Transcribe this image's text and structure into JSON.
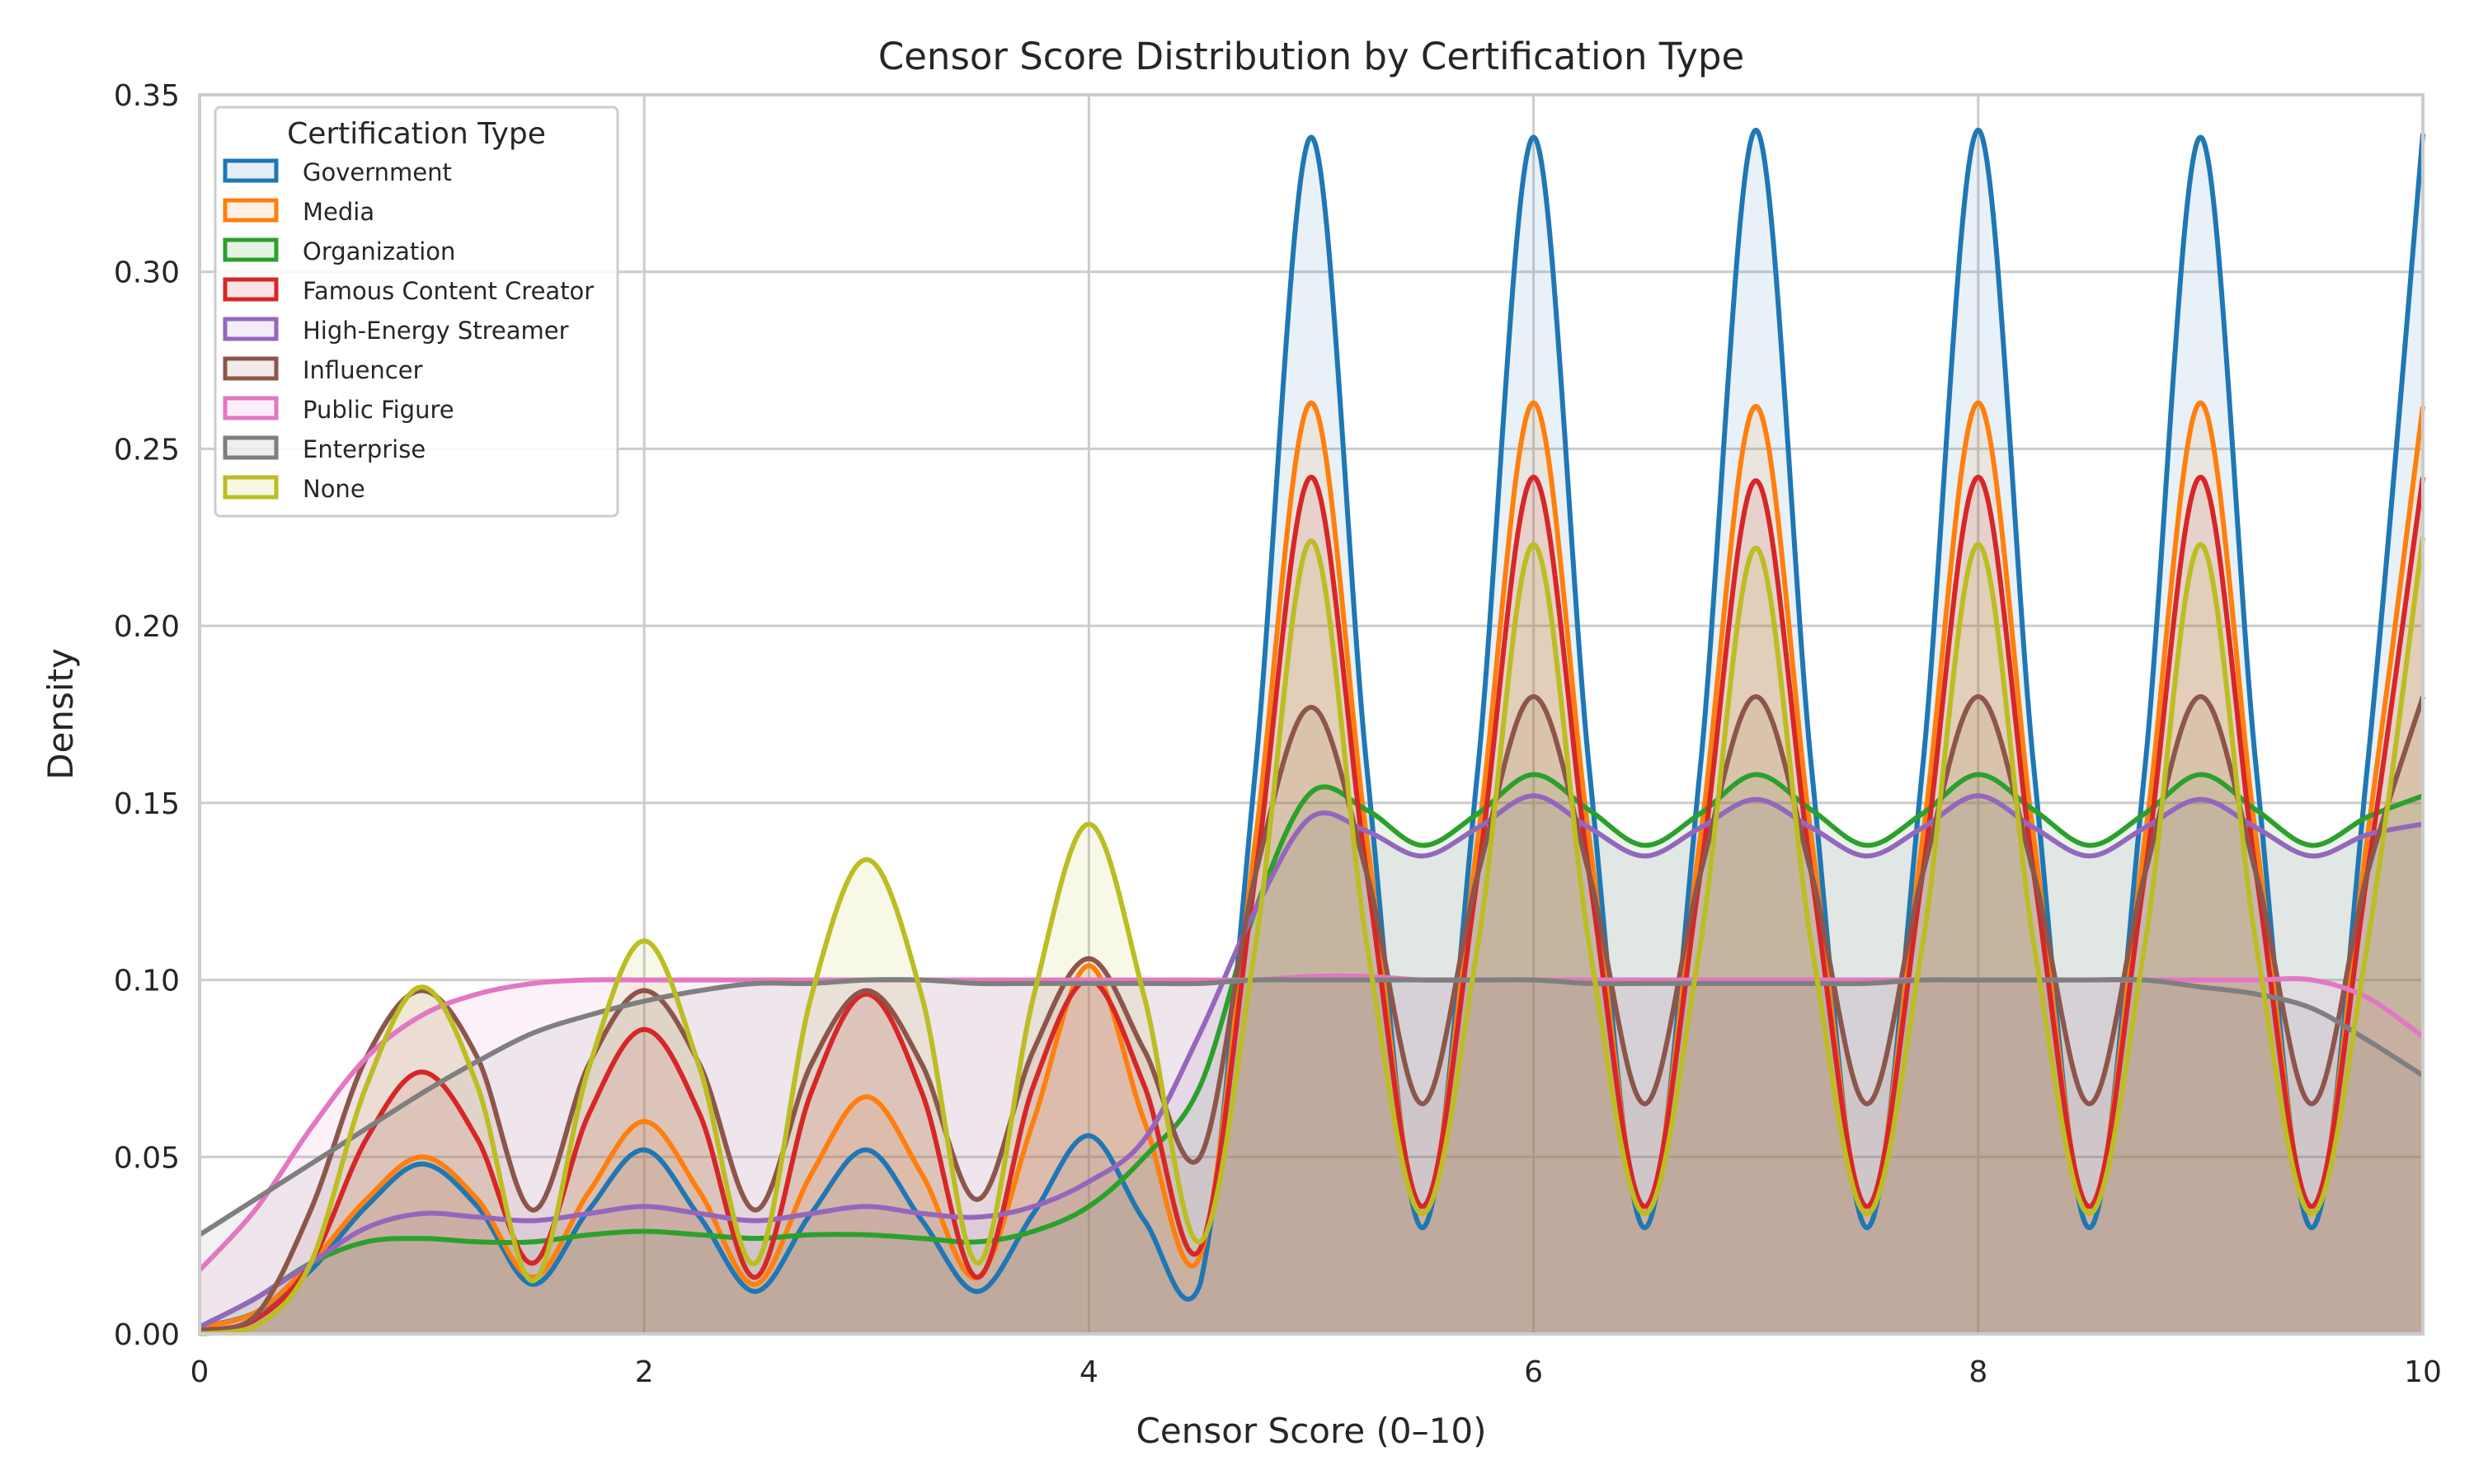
{
  "chart_data": {
    "type": "area",
    "title": "Censor Score Distribution by Certification Type",
    "xlabel": "Censor Score (0–10)",
    "ylabel": "Density",
    "xlim": [
      0,
      10
    ],
    "ylim": [
      0,
      0.35
    ],
    "xticks": [
      0,
      2,
      4,
      6,
      8,
      10
    ],
    "yticks": [
      0.0,
      0.05,
      0.1,
      0.15,
      0.2,
      0.25,
      0.3,
      0.35
    ],
    "grid": true,
    "legend": {
      "title": "Certification Type",
      "position": "top-left"
    },
    "x": [
      0,
      0.25,
      0.5,
      0.75,
      1,
      1.25,
      1.5,
      1.75,
      2,
      2.25,
      2.5,
      2.75,
      3,
      3.25,
      3.5,
      3.75,
      4,
      4.25,
      4.5,
      4.75,
      5,
      5.25,
      5.5,
      5.75,
      6,
      6.25,
      6.5,
      6.75,
      7,
      7.25,
      7.5,
      7.75,
      8,
      8.25,
      8.5,
      8.75,
      9,
      9.25,
      9.5,
      9.75,
      10
    ],
    "series": [
      {
        "name": "Government",
        "color": "#1f77b4",
        "values": [
          0.002,
          0.006,
          0.018,
          0.036,
          0.048,
          0.036,
          0.014,
          0.035,
          0.052,
          0.033,
          0.012,
          0.034,
          0.052,
          0.032,
          0.012,
          0.034,
          0.056,
          0.032,
          0.014,
          0.16,
          0.338,
          0.16,
          0.03,
          0.16,
          0.338,
          0.16,
          0.03,
          0.16,
          0.34,
          0.16,
          0.03,
          0.16,
          0.34,
          0.16,
          0.03,
          0.16,
          0.338,
          0.16,
          0.03,
          0.16,
          0.339
        ]
      },
      {
        "name": "Media",
        "color": "#ff7f0e",
        "values": [
          0.002,
          0.006,
          0.02,
          0.038,
          0.05,
          0.038,
          0.016,
          0.04,
          0.06,
          0.04,
          0.014,
          0.045,
          0.067,
          0.045,
          0.016,
          0.06,
          0.104,
          0.06,
          0.022,
          0.14,
          0.263,
          0.14,
          0.034,
          0.14,
          0.263,
          0.14,
          0.034,
          0.14,
          0.262,
          0.14,
          0.034,
          0.14,
          0.263,
          0.14,
          0.034,
          0.14,
          0.263,
          0.14,
          0.034,
          0.14,
          0.262
        ]
      },
      {
        "name": "Organization",
        "color": "#2ca02c",
        "values": [
          0.002,
          0.01,
          0.02,
          0.026,
          0.027,
          0.026,
          0.026,
          0.028,
          0.029,
          0.028,
          0.027,
          0.028,
          0.028,
          0.027,
          0.026,
          0.029,
          0.036,
          0.05,
          0.07,
          0.12,
          0.153,
          0.148,
          0.138,
          0.147,
          0.158,
          0.148,
          0.138,
          0.147,
          0.158,
          0.148,
          0.138,
          0.147,
          0.158,
          0.148,
          0.138,
          0.147,
          0.158,
          0.148,
          0.138,
          0.146,
          0.152
        ]
      },
      {
        "name": "Famous Content Creator",
        "color": "#d62728",
        "values": [
          0.001,
          0.004,
          0.02,
          0.055,
          0.074,
          0.055,
          0.02,
          0.062,
          0.086,
          0.062,
          0.016,
          0.068,
          0.096,
          0.068,
          0.016,
          0.07,
          0.1,
          0.07,
          0.024,
          0.13,
          0.242,
          0.13,
          0.036,
          0.13,
          0.242,
          0.13,
          0.036,
          0.13,
          0.241,
          0.13,
          0.036,
          0.13,
          0.242,
          0.13,
          0.036,
          0.13,
          0.242,
          0.13,
          0.036,
          0.13,
          0.242
        ]
      },
      {
        "name": "High-Energy Streamer",
        "color": "#9467bd",
        "values": [
          0.002,
          0.01,
          0.02,
          0.03,
          0.034,
          0.033,
          0.032,
          0.034,
          0.036,
          0.034,
          0.032,
          0.034,
          0.036,
          0.034,
          0.033,
          0.036,
          0.043,
          0.055,
          0.085,
          0.12,
          0.146,
          0.142,
          0.135,
          0.143,
          0.152,
          0.143,
          0.135,
          0.143,
          0.151,
          0.143,
          0.135,
          0.143,
          0.152,
          0.143,
          0.135,
          0.143,
          0.151,
          0.143,
          0.135,
          0.141,
          0.144
        ]
      },
      {
        "name": "Influencer",
        "color": "#8c564b",
        "values": [
          0.001,
          0.005,
          0.035,
          0.078,
          0.097,
          0.078,
          0.035,
          0.076,
          0.097,
          0.076,
          0.035,
          0.076,
          0.097,
          0.076,
          0.038,
          0.08,
          0.106,
          0.08,
          0.05,
          0.13,
          0.177,
          0.13,
          0.065,
          0.13,
          0.18,
          0.13,
          0.065,
          0.13,
          0.18,
          0.13,
          0.065,
          0.13,
          0.18,
          0.13,
          0.065,
          0.13,
          0.18,
          0.13,
          0.065,
          0.13,
          0.18
        ]
      },
      {
        "name": "Public Figure",
        "color": "#e377c2",
        "values": [
          0.018,
          0.035,
          0.058,
          0.078,
          0.09,
          0.096,
          0.099,
          0.1,
          0.1,
          0.1,
          0.1,
          0.1,
          0.1,
          0.1,
          0.1,
          0.1,
          0.1,
          0.1,
          0.1,
          0.1,
          0.101,
          0.101,
          0.1,
          0.1,
          0.1,
          0.1,
          0.1,
          0.1,
          0.1,
          0.1,
          0.1,
          0.1,
          0.1,
          0.1,
          0.1,
          0.1,
          0.1,
          0.1,
          0.1,
          0.095,
          0.084
        ]
      },
      {
        "name": "Enterprise",
        "color": "#7f7f7f",
        "values": [
          0.028,
          0.038,
          0.048,
          0.058,
          0.068,
          0.077,
          0.085,
          0.09,
          0.094,
          0.097,
          0.099,
          0.099,
          0.1,
          0.1,
          0.099,
          0.099,
          0.099,
          0.099,
          0.099,
          0.1,
          0.1,
          0.1,
          0.1,
          0.1,
          0.1,
          0.099,
          0.099,
          0.099,
          0.099,
          0.099,
          0.099,
          0.1,
          0.1,
          0.1,
          0.1,
          0.1,
          0.098,
          0.096,
          0.092,
          0.083,
          0.073
        ]
      },
      {
        "name": "None",
        "color": "#bcbd22",
        "values": [
          0.0,
          0.002,
          0.02,
          0.07,
          0.098,
          0.07,
          0.015,
          0.075,
          0.111,
          0.075,
          0.02,
          0.095,
          0.134,
          0.095,
          0.02,
          0.095,
          0.144,
          0.095,
          0.026,
          0.11,
          0.224,
          0.11,
          0.034,
          0.11,
          0.223,
          0.11,
          0.034,
          0.11,
          0.222,
          0.11,
          0.034,
          0.11,
          0.223,
          0.11,
          0.034,
          0.11,
          0.223,
          0.11,
          0.034,
          0.11,
          0.225
        ]
      }
    ]
  }
}
